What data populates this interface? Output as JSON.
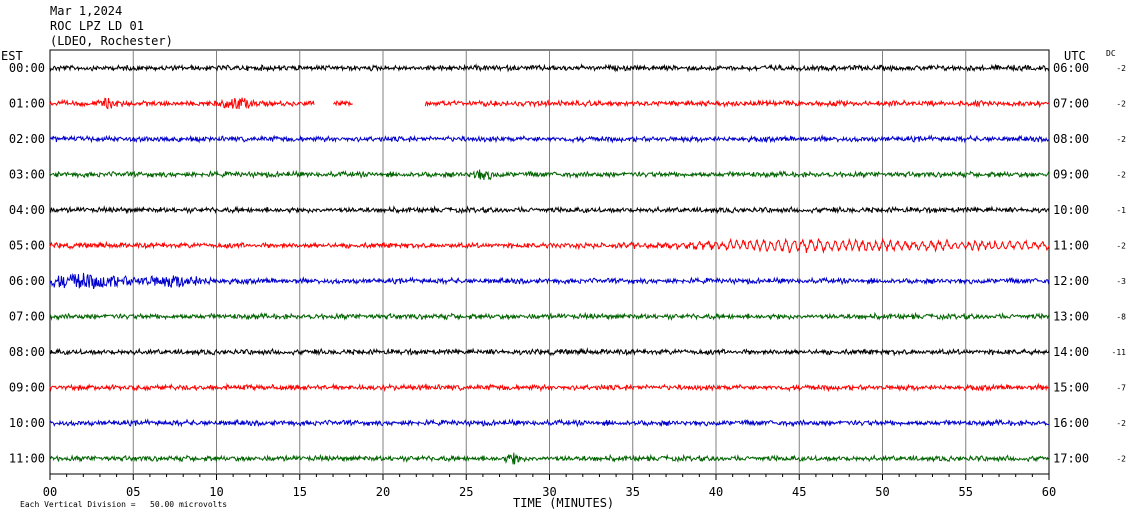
{
  "header": {
    "date": "Mar 1,2024",
    "station": "ROC LPZ LD 01",
    "network": "(LDEO, Rochester)"
  },
  "chart_data": {
    "type": "line",
    "title": "Mar 1,2024",
    "left_timezone": "EST",
    "right_timezone": "UTC",
    "dc_label": "DC",
    "xlabel": "TIME (MINUTES)",
    "xlim": [
      0,
      60
    ],
    "x_ticks": [
      0,
      5,
      10,
      15,
      20,
      25,
      30,
      35,
      40,
      45,
      50,
      55,
      60
    ],
    "x_tick_labels": [
      "00",
      "05",
      "10",
      "15",
      "20",
      "25",
      "30",
      "35",
      "40",
      "45",
      "50",
      "55",
      "60"
    ],
    "grid": true,
    "trace_colors": [
      "#000000",
      "#ff0000",
      "#0000cc",
      "#006400"
    ],
    "rows": [
      {
        "est": "00:00",
        "utc": "06:00",
        "dc": "-2",
        "color": "#000000",
        "amplitude": 0.9
      },
      {
        "est": "01:00",
        "utc": "07:00",
        "dc": "-2",
        "color": "#ff0000",
        "amplitude": 0.9,
        "gaps": [
          [
            15.9,
            17.0
          ],
          [
            18.2,
            22.5
          ]
        ],
        "bursts": [
          {
            "x": 3.5,
            "width": 0.5,
            "amp": 1.6
          },
          {
            "x": 11.2,
            "width": 0.8,
            "amp": 2.2
          }
        ]
      },
      {
        "est": "02:00",
        "utc": "08:00",
        "dc": "-2",
        "color": "#0000cc",
        "amplitude": 0.9
      },
      {
        "est": "03:00",
        "utc": "09:00",
        "dc": "-2",
        "color": "#006400",
        "amplitude": 0.9,
        "bursts": [
          {
            "x": 26.0,
            "width": 0.6,
            "amp": 1.6
          }
        ]
      },
      {
        "est": "04:00",
        "utc": "10:00",
        "dc": "-1",
        "color": "#000000",
        "amplitude": 0.9
      },
      {
        "est": "05:00",
        "utc": "11:00",
        "dc": "-2",
        "color": "#ff0000",
        "amplitude": 0.9,
        "surface_wave": {
          "start": 29.5,
          "end": 60,
          "peak": 44.5,
          "amp": 6.0
        }
      },
      {
        "est": "06:00",
        "utc": "12:00",
        "dc": "-3",
        "color": "#0000cc",
        "amplitude": 0.9,
        "bursts": [
          {
            "x": 2.0,
            "width": 2.5,
            "amp": 2.6
          },
          {
            "x": 7.5,
            "width": 2.0,
            "amp": 1.8
          }
        ]
      },
      {
        "est": "07:00",
        "utc": "13:00",
        "dc": "-8",
        "color": "#006400",
        "amplitude": 0.9
      },
      {
        "est": "08:00",
        "utc": "14:00",
        "dc": "-11",
        "color": "#000000",
        "amplitude": 0.9
      },
      {
        "est": "09:00",
        "utc": "15:00",
        "dc": "-7",
        "color": "#ff0000",
        "amplitude": 0.9
      },
      {
        "est": "10:00",
        "utc": "16:00",
        "dc": "-2",
        "color": "#0000cc",
        "amplitude": 0.9
      },
      {
        "est": "11:00",
        "utc": "17:00",
        "dc": "-2",
        "color": "#006400",
        "amplitude": 0.9,
        "bursts": [
          {
            "x": 27.8,
            "width": 0.4,
            "amp": 1.8
          }
        ]
      }
    ],
    "scale_note": "Each Vertical Division =   50.00 microvolts"
  }
}
